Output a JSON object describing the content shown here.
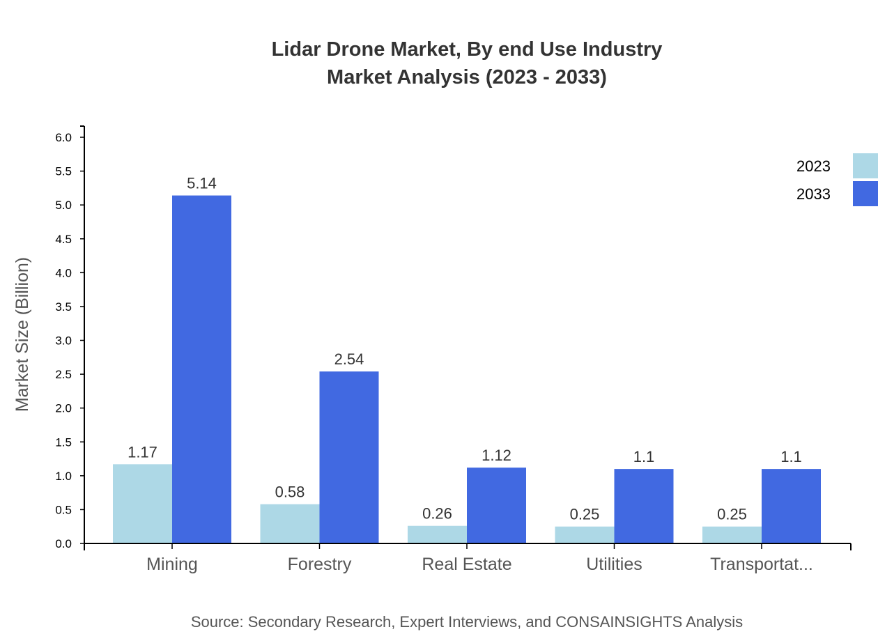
{
  "chart_data": {
    "type": "bar",
    "title": "Lidar Drone Market, By end Use Industry",
    "subtitle": "Market Analysis (2023 - 2033)",
    "xlabel": "",
    "ylabel": "Market Size (Billion)",
    "ylim": [
      0,
      6.0
    ],
    "yticks": [
      "0.0",
      "0.5",
      "1.0",
      "1.5",
      "2.0",
      "2.5",
      "3.0",
      "3.5",
      "4.0",
      "4.5",
      "5.0",
      "5.5",
      "6.0"
    ],
    "categories": [
      "Mining",
      "Forestry",
      "Real Estate",
      "Utilities",
      "Transportat..."
    ],
    "series": [
      {
        "name": "2023",
        "color": "#ADD8E6",
        "values": [
          1.17,
          0.58,
          0.26,
          0.25,
          0.25
        ]
      },
      {
        "name": "2033",
        "color": "#4169E1",
        "values": [
          5.14,
          2.54,
          1.12,
          1.1,
          1.1
        ]
      }
    ],
    "grid": false,
    "legend": "top-right",
    "source": "Source: Secondary Research, Expert Interviews, and CONSAINSIGHTS Analysis"
  }
}
